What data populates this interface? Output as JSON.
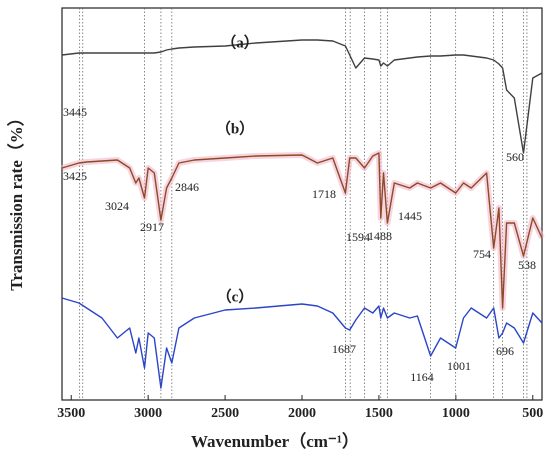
{
  "chart_data": {
    "type": "line",
    "xlabel": "Wavenumber（cm⁻¹）",
    "ylabel": "Transmission rate（%）",
    "xlim": [
      3560,
      440
    ],
    "ylim": [
      0,
      392
    ],
    "xticks": [
      3500,
      3000,
      2500,
      2000,
      1500,
      1000,
      500
    ],
    "x": [
      3560,
      3450,
      3400,
      3300,
      3200,
      3120,
      3080,
      3060,
      3024,
      3000,
      2960,
      2917,
      2880,
      2846,
      2800,
      2700,
      2500,
      2300,
      2000,
      1900,
      1800,
      1718,
      1690,
      1650,
      1594,
      1540,
      1500,
      1488,
      1470,
      1445,
      1400,
      1300,
      1250,
      1164,
      1100,
      1001,
      950,
      900,
      800,
      754,
      720,
      696,
      670,
      620,
      560,
      500,
      440
    ],
    "series": [
      {
        "name": "（a）",
        "color": "#404040",
        "values": [
          345,
          347,
          347,
          347,
          347,
          347,
          347,
          347,
          347,
          347,
          347,
          348,
          350,
          351,
          352,
          353,
          354,
          357,
          360,
          360,
          359,
          354,
          345,
          332,
          342,
          341,
          340,
          334,
          337,
          334,
          340,
          342,
          343,
          344,
          344,
          345,
          345,
          344,
          342,
          340,
          336,
          332,
          310,
          302,
          247,
          322,
          327
        ],
        "peaks": [
          3445,
          560
        ]
      },
      {
        "name": "（b）",
        "color": "#8b4a2a",
        "values": [
          232,
          237,
          238,
          239,
          240,
          232,
          217,
          222,
          202,
          232,
          227,
          180,
          212,
          222,
          237,
          240,
          242,
          244,
          245,
          237,
          242,
          207,
          242,
          242,
          232,
          244,
          247,
          182,
          227,
          177,
          217,
          212,
          217,
          212,
          217,
          207,
          217,
          212,
          227,
          152,
          192,
          92,
          177,
          177,
          144,
          182,
          162
        ],
        "peaks": [
          3425,
          3024,
          2917,
          2846,
          1718,
          1594,
          1488,
          1445,
          754,
          538
        ]
      },
      {
        "name": "（c）",
        "color": "#2a45c8",
        "values": [
          102,
          97,
          92,
          82,
          62,
          72,
          47,
          62,
          32,
          67,
          62,
          12,
          52,
          37,
          72,
          82,
          90,
          92,
          96,
          94,
          87,
          72,
          70,
          80,
          92,
          87,
          94,
          82,
          92,
          82,
          87,
          82,
          84,
          44,
          62,
          52,
          82,
          92,
          82,
          92,
          62,
          67,
          77,
          72,
          57,
          87,
          77
        ],
        "peaks": [
          1687,
          1164,
          1001,
          696
        ]
      }
    ]
  }
}
